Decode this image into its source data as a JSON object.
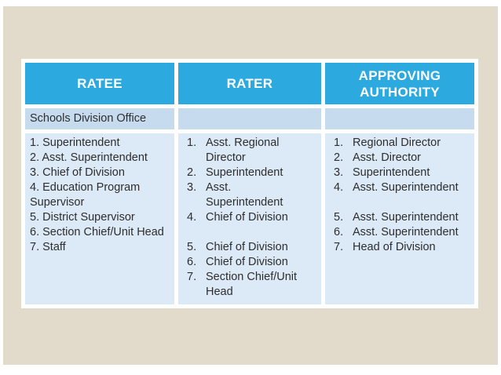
{
  "slide": {
    "description": "Presentation slide with performance rating responsibility table"
  },
  "table": {
    "headers": [
      {
        "label": "RATEE"
      },
      {
        "label": "RATER"
      },
      {
        "label": "APPROVING AUTHORITY"
      }
    ],
    "section_label": "Schools Division Office",
    "columns": {
      "ratee": [
        "1. Superintendent",
        "2. Asst. Superintendent",
        "3. Chief of Division",
        "4. Education Program\nSupervisor",
        "5. District Supervisor",
        "6. Section Chief/Unit Head",
        "7. Staff"
      ],
      "rater": [
        {
          "n": "1.",
          "t": "Asst. Regional\nDirector"
        },
        {
          "n": "2.",
          "t": "Superintendent"
        },
        {
          "n": "3.",
          "t": "Asst.\nSuperintendent"
        },
        {
          "n": "4.",
          "t": "Chief of Division"
        },
        {
          "n": "",
          "t": ""
        },
        {
          "n": "5.",
          "t": "Chief of Division"
        },
        {
          "n": "6.",
          "t": "Chief of Division"
        },
        {
          "n": "7.",
          "t": "Section Chief/Unit\nHead"
        }
      ],
      "approving_authority": [
        {
          "n": "1.",
          "t": "Regional Director"
        },
        {
          "n": "2.",
          "t": "Asst. Director"
        },
        {
          "n": "3.",
          "t": "Superintendent"
        },
        {
          "n": "4.",
          "t": "Asst. Superintendent"
        },
        {
          "n": "",
          "t": ""
        },
        {
          "n": "5.",
          "t": "Asst. Superintendent"
        },
        {
          "n": "6.",
          "t": "Asst. Superintendent"
        },
        {
          "n": "7.",
          "t": "Head of Division"
        }
      ]
    }
  },
  "colors": {
    "page_bg": "#ffffff",
    "slide_bg": "#e2dbcc",
    "header_bg": "#2ca9df",
    "header_text": "#ffffff",
    "section_row_bg": "#c7dbee",
    "body_row_bg": "#dce9f6",
    "border": "#ffffff",
    "text": "#2e2e2e"
  }
}
